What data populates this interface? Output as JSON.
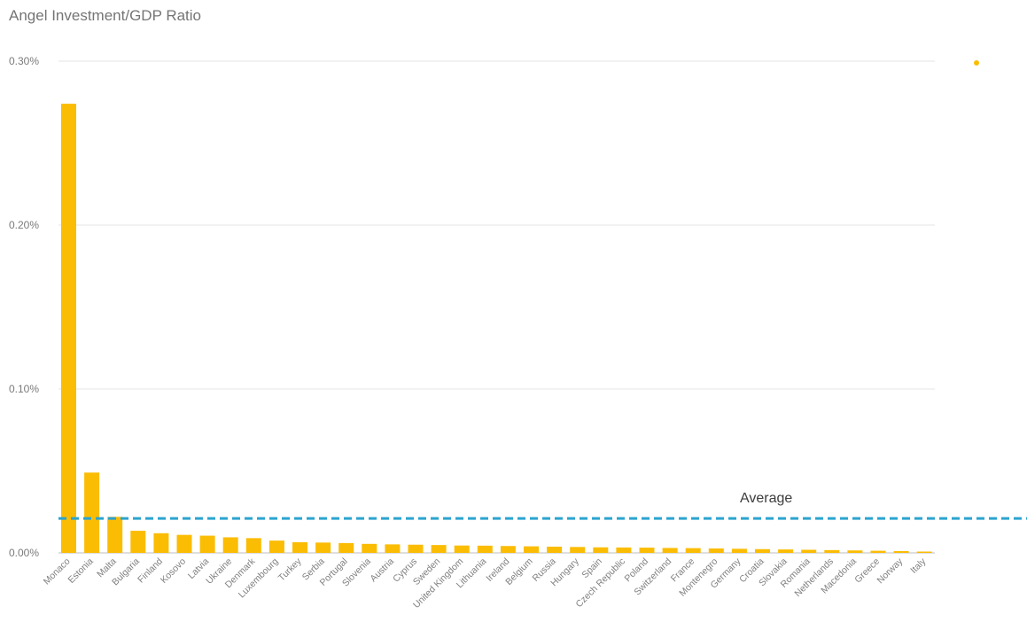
{
  "chart_data": {
    "type": "bar",
    "title": "Angel Investment/GDP Ratio",
    "xlabel": "",
    "ylabel": "",
    "ylim": [
      0,
      0.3
    ],
    "y_ticks": [
      "0.00%",
      "0.10%",
      "0.20%",
      "0.30%"
    ],
    "grid": true,
    "categories": [
      "Monaco",
      "Estonia",
      "Malta",
      "Bulgaria",
      "Finland",
      "Kosovo",
      "Latvia",
      "Ukraine",
      "Denmark",
      "Luxembourg",
      "Turkey",
      "Serbia",
      "Portugal",
      "Slovenia",
      "Austria",
      "Cyprus",
      "Sweden",
      "United Kingdom",
      "Lithuania",
      "Ireland",
      "Belgium",
      "Russia",
      "Hungary",
      "Spain",
      "Czech Republic",
      "Poland",
      "Switzerland",
      "France",
      "Montenegro",
      "Germany",
      "Croatia",
      "Slovakia",
      "Romania",
      "Netherlands",
      "Macedonia",
      "Greece",
      "Norway",
      "Italy"
    ],
    "values": [
      0.274,
      0.049,
      0.022,
      0.0135,
      0.012,
      0.011,
      0.0105,
      0.0095,
      0.009,
      0.0075,
      0.0065,
      0.0063,
      0.006,
      0.0055,
      0.0052,
      0.005,
      0.0048,
      0.0045,
      0.0044,
      0.0042,
      0.004,
      0.0038,
      0.0036,
      0.0034,
      0.0033,
      0.0032,
      0.003,
      0.0029,
      0.0027,
      0.0025,
      0.0023,
      0.0021,
      0.0019,
      0.0017,
      0.0015,
      0.0013,
      0.0011,
      0.0008
    ],
    "average": {
      "label": "Average",
      "value": 0.021
    },
    "colors": {
      "bar": "#FBBC04",
      "average_line": "#2BA3CF",
      "grid": "#e6e6e6"
    }
  }
}
